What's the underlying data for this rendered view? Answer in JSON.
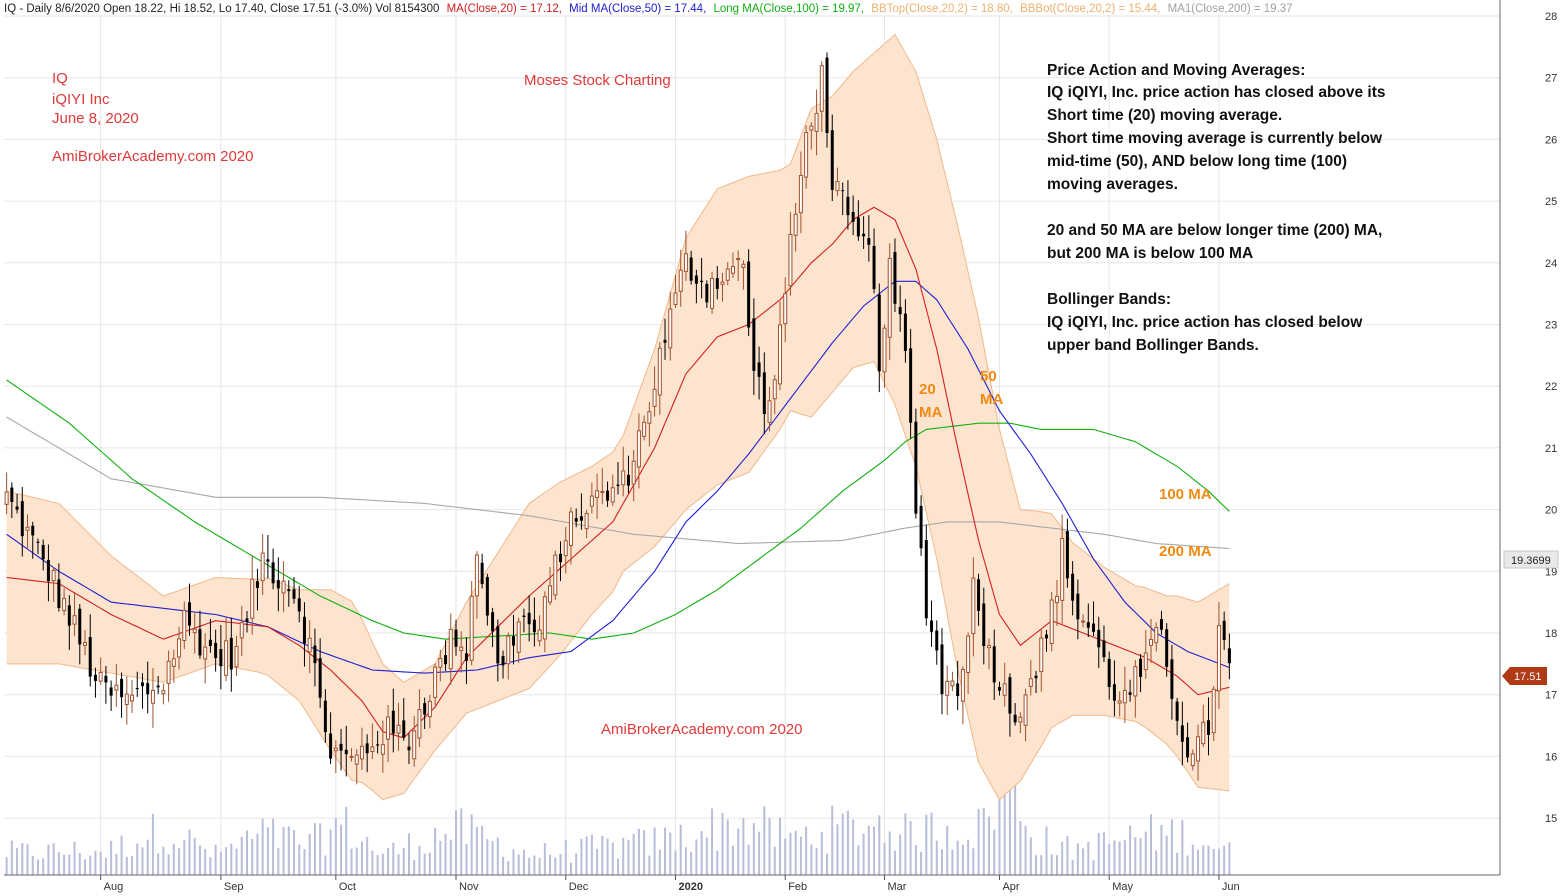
{
  "header": {
    "main": "IQ - Daily 8/6/2020 Open 18.22, Hi 18.52, Lo 17.40, Close 17.51 (-3.0%) Vol 8154300",
    "indicators": [
      {
        "label": "MA(Close,20) = 17.12,",
        "color": "#d42020"
      },
      {
        "label": "Mid MA(Close,50) = 17.44,",
        "color": "#2020d0"
      },
      {
        "label": "Long MA(Close,100) = 19.97,",
        "color": "#10b010"
      },
      {
        "label": "BBTop(Close,20,2) = 18.80,",
        "color": "#f0b070"
      },
      {
        "label": "BBBot(Close,20,2) = 15.44,",
        "color": "#f0b070"
      },
      {
        "label": "MA1(Close,200) = 19.37",
        "color": "#a0a0a0"
      }
    ]
  },
  "notes": {
    "ticker_block": [
      "IQ",
      "iQIYI Inc",
      "June 8, 2020"
    ],
    "site_top": "AmiBrokerAcademy.com  2020",
    "brand": "Moses Stock Charting",
    "site_bottom": "AmiBrokerAcademy.com  2020",
    "ma20_label": [
      "20",
      "MA"
    ],
    "ma50_label": [
      "50",
      "MA"
    ],
    "ma100_label": "100 MA",
    "ma200_label": "200 MA"
  },
  "commentary": [
    "Price Action and Moving Averages:",
    "IQ iQIYI, Inc. price action has closed above its",
    "Short time (20) moving average.",
    "Short time moving average is currently below",
    "mid-time (50), AND below long time (100)",
    "moving averages.",
    "",
    "20 and 50 MA are below longer time (200) MA,",
    "but 200 MA is below 100 MA",
    "",
    "Bollinger Bands:",
    "IQ iQIYI, Inc. price action has closed below",
    "upper band Bollinger Bands."
  ],
  "price_tags": {
    "ma200": "19.3699",
    "close": "17.51"
  },
  "colors": {
    "up_candle": "#a0522d",
    "down_candle": "#000000",
    "band_fill": "#fde4cf",
    "band_edge": "#f2b88a",
    "ma20": "#d42020",
    "ma50": "#2020d0",
    "ma100": "#10b010",
    "ma200": "#a8a8a8",
    "volume": "#b8bdd8",
    "grid": "#e6e6e6"
  },
  "chart_data": {
    "type": "candlestick",
    "title": "IQ - Daily",
    "ylim": [
      14.4,
      28.2
    ],
    "y_ticks": [
      15,
      16,
      17,
      18,
      19,
      20,
      21,
      22,
      23,
      24,
      25,
      26,
      27,
      28
    ],
    "x_ticks": [
      {
        "label": "Aug",
        "bar": 18
      },
      {
        "label": "Sep",
        "bar": 41
      },
      {
        "label": "Oct",
        "bar": 63
      },
      {
        "label": "Nov",
        "bar": 86
      },
      {
        "label": "Dec",
        "bar": 107
      },
      {
        "label": "2020",
        "bar": 128
      },
      {
        "label": "Feb",
        "bar": 149
      },
      {
        "label": "Mar",
        "bar": 168
      },
      {
        "label": "Apr",
        "bar": 190
      },
      {
        "label": "May",
        "bar": 211
      },
      {
        "label": "Jun",
        "bar": 232
      }
    ],
    "anchors": {
      "close": [
        [
          0,
          20.2
        ],
        [
          8,
          19.0
        ],
        [
          18,
          17.1
        ],
        [
          23,
          16.9
        ],
        [
          30,
          17.2
        ],
        [
          34,
          18.2
        ],
        [
          40,
          17.6
        ],
        [
          44,
          17.7
        ],
        [
          49,
          19.2
        ],
        [
          55,
          18.7
        ],
        [
          58,
          17.8
        ],
        [
          60,
          16.9
        ],
        [
          62,
          16.1
        ],
        [
          66,
          15.9
        ],
        [
          72,
          16.4
        ],
        [
          77,
          16.3
        ],
        [
          82,
          17.3
        ],
        [
          86,
          18.0
        ],
        [
          88,
          17.7
        ],
        [
          90,
          19.4
        ],
        [
          94,
          17.4
        ],
        [
          98,
          18.2
        ],
        [
          102,
          18.0
        ],
        [
          106,
          19.4
        ],
        [
          110,
          20.0
        ],
        [
          114,
          20.2
        ],
        [
          118,
          20.4
        ],
        [
          122,
          21.4
        ],
        [
          126,
          22.8
        ],
        [
          130,
          24.0
        ],
        [
          134,
          23.6
        ],
        [
          138,
          23.9
        ],
        [
          141,
          23.9
        ],
        [
          143,
          22.2
        ],
        [
          146,
          21.6
        ],
        [
          150,
          24.2
        ],
        [
          153,
          26.0
        ],
        [
          156,
          27.0
        ],
        [
          158,
          25.4
        ],
        [
          162,
          24.4
        ],
        [
          165,
          24.2
        ],
        [
          167,
          22.5
        ],
        [
          169,
          23.8
        ],
        [
          172,
          22.5
        ],
        [
          174,
          20.0
        ],
        [
          176,
          18.5
        ],
        [
          179,
          17.2
        ],
        [
          182,
          17.1
        ],
        [
          185,
          18.7
        ],
        [
          188,
          17.7
        ],
        [
          191,
          17.0
        ],
        [
          193,
          16.7
        ],
        [
          196,
          17.3
        ],
        [
          199,
          17.9
        ],
        [
          202,
          19.3
        ],
        [
          205,
          18.3
        ],
        [
          208,
          18.0
        ],
        [
          211,
          17.2
        ],
        [
          214,
          16.9
        ],
        [
          218,
          17.5
        ],
        [
          221,
          18.0
        ],
        [
          224,
          16.7
        ],
        [
          227,
          15.9
        ],
        [
          230,
          16.5
        ],
        [
          232,
          18.0
        ],
        [
          234,
          17.51
        ]
      ],
      "ma20": [
        [
          0,
          18.9
        ],
        [
          10,
          18.8
        ],
        [
          20,
          18.3
        ],
        [
          30,
          17.9
        ],
        [
          40,
          18.2
        ],
        [
          50,
          18.1
        ],
        [
          56,
          17.8
        ],
        [
          62,
          17.4
        ],
        [
          68,
          16.9
        ],
        [
          72,
          16.4
        ],
        [
          76,
          16.3
        ],
        [
          82,
          16.8
        ],
        [
          88,
          17.6
        ],
        [
          94,
          18.1
        ],
        [
          100,
          18.6
        ],
        [
          108,
          19.2
        ],
        [
          116,
          19.8
        ],
        [
          124,
          21.0
        ],
        [
          130,
          22.2
        ],
        [
          136,
          22.8
        ],
        [
          142,
          23.0
        ],
        [
          148,
          23.4
        ],
        [
          154,
          24.0
        ],
        [
          158,
          24.3
        ],
        [
          162,
          24.7
        ],
        [
          166,
          24.9
        ],
        [
          170,
          24.7
        ],
        [
          174,
          23.9
        ],
        [
          178,
          22.6
        ],
        [
          182,
          21.0
        ],
        [
          186,
          19.5
        ],
        [
          190,
          18.3
        ],
        [
          194,
          17.8
        ],
        [
          200,
          18.2
        ],
        [
          206,
          18.0
        ],
        [
          212,
          17.8
        ],
        [
          218,
          17.6
        ],
        [
          224,
          17.3
        ],
        [
          228,
          17.0
        ],
        [
          234,
          17.12
        ]
      ],
      "ma50": [
        [
          0,
          19.6
        ],
        [
          10,
          19.0
        ],
        [
          20,
          18.5
        ],
        [
          30,
          18.4
        ],
        [
          40,
          18.3
        ],
        [
          50,
          18.1
        ],
        [
          60,
          17.7
        ],
        [
          70,
          17.4
        ],
        [
          80,
          17.35
        ],
        [
          90,
          17.4
        ],
        [
          100,
          17.6
        ],
        [
          108,
          17.7
        ],
        [
          116,
          18.2
        ],
        [
          124,
          19.0
        ],
        [
          130,
          19.8
        ],
        [
          136,
          20.3
        ],
        [
          142,
          20.9
        ],
        [
          150,
          21.8
        ],
        [
          158,
          22.7
        ],
        [
          164,
          23.3
        ],
        [
          170,
          23.7
        ],
        [
          174,
          23.7
        ],
        [
          178,
          23.4
        ],
        [
          184,
          22.6
        ],
        [
          190,
          21.6
        ],
        [
          196,
          20.9
        ],
        [
          202,
          20.1
        ],
        [
          208,
          19.2
        ],
        [
          214,
          18.5
        ],
        [
          220,
          18.0
        ],
        [
          226,
          17.7
        ],
        [
          234,
          17.44
        ]
      ],
      "ma100": [
        [
          0,
          22.1
        ],
        [
          12,
          21.4
        ],
        [
          24,
          20.5
        ],
        [
          36,
          19.8
        ],
        [
          48,
          19.2
        ],
        [
          60,
          18.6
        ],
        [
          70,
          18.2
        ],
        [
          76,
          18.0
        ],
        [
          84,
          17.9
        ],
        [
          94,
          17.95
        ],
        [
          104,
          18.0
        ],
        [
          112,
          17.9
        ],
        [
          120,
          18.0
        ],
        [
          128,
          18.3
        ],
        [
          136,
          18.7
        ],
        [
          144,
          19.2
        ],
        [
          152,
          19.7
        ],
        [
          160,
          20.3
        ],
        [
          168,
          20.8
        ],
        [
          172,
          21.1
        ],
        [
          176,
          21.3
        ],
        [
          186,
          21.4
        ],
        [
          192,
          21.4
        ],
        [
          198,
          21.3
        ],
        [
          208,
          21.3
        ],
        [
          216,
          21.1
        ],
        [
          224,
          20.7
        ],
        [
          230,
          20.3
        ],
        [
          234,
          19.97
        ]
      ],
      "ma200": [
        [
          0,
          21.5
        ],
        [
          20,
          20.5
        ],
        [
          40,
          20.2
        ],
        [
          60,
          20.2
        ],
        [
          80,
          20.1
        ],
        [
          100,
          19.9
        ],
        [
          120,
          19.6
        ],
        [
          140,
          19.45
        ],
        [
          160,
          19.5
        ],
        [
          172,
          19.7
        ],
        [
          180,
          19.8
        ],
        [
          190,
          19.8
        ],
        [
          200,
          19.7
        ],
        [
          210,
          19.6
        ],
        [
          220,
          19.45
        ],
        [
          234,
          19.37
        ]
      ],
      "bb_width": [
        [
          0,
          1.4
        ],
        [
          10,
          1.3
        ],
        [
          20,
          0.95
        ],
        [
          30,
          0.7
        ],
        [
          40,
          0.7
        ],
        [
          48,
          0.75
        ],
        [
          56,
          0.9
        ],
        [
          62,
          1.3
        ],
        [
          66,
          1.45
        ],
        [
          70,
          1.2
        ],
        [
          76,
          0.9
        ],
        [
          82,
          0.7
        ],
        [
          88,
          0.9
        ],
        [
          94,
          1.2
        ],
        [
          100,
          1.5
        ],
        [
          106,
          1.4
        ],
        [
          112,
          1.2
        ],
        [
          118,
          1.1
        ],
        [
          124,
          1.6
        ],
        [
          130,
          2.2
        ],
        [
          136,
          2.4
        ],
        [
          142,
          2.4
        ],
        [
          146,
          2.2
        ],
        [
          150,
          2.0
        ],
        [
          154,
          2.5
        ],
        [
          158,
          2.4
        ],
        [
          162,
          2.4
        ],
        [
          166,
          2.5
        ],
        [
          170,
          3.0
        ],
        [
          174,
          3.2
        ],
        [
          178,
          3.4
        ],
        [
          182,
          3.6
        ],
        [
          186,
          3.6
        ],
        [
          190,
          3.0
        ],
        [
          194,
          2.2
        ],
        [
          198,
          1.9
        ],
        [
          204,
          1.4
        ],
        [
          210,
          1.2
        ],
        [
          216,
          1.1
        ],
        [
          222,
          1.2
        ],
        [
          228,
          1.5
        ],
        [
          234,
          1.68
        ]
      ],
      "volume": [
        [
          0,
          0.22
        ],
        [
          20,
          0.24
        ],
        [
          30,
          0.45
        ],
        [
          40,
          0.2
        ],
        [
          49,
          0.4
        ],
        [
          58,
          0.3
        ],
        [
          64,
          0.5
        ],
        [
          72,
          0.2
        ],
        [
          86,
          0.45
        ],
        [
          100,
          0.2
        ],
        [
          110,
          0.25
        ],
        [
          120,
          0.3
        ],
        [
          128,
          0.35
        ],
        [
          134,
          0.45
        ],
        [
          142,
          0.5
        ],
        [
          150,
          0.35
        ],
        [
          158,
          0.45
        ],
        [
          168,
          0.5
        ],
        [
          172,
          0.4
        ],
        [
          178,
          0.45
        ],
        [
          186,
          0.45
        ],
        [
          192,
          1.0
        ],
        [
          196,
          0.4
        ],
        [
          202,
          0.25
        ],
        [
          210,
          0.3
        ],
        [
          218,
          0.4
        ],
        [
          226,
          0.4
        ],
        [
          234,
          0.22
        ]
      ]
    },
    "bars": 235,
    "volume_max": 28000000
  }
}
